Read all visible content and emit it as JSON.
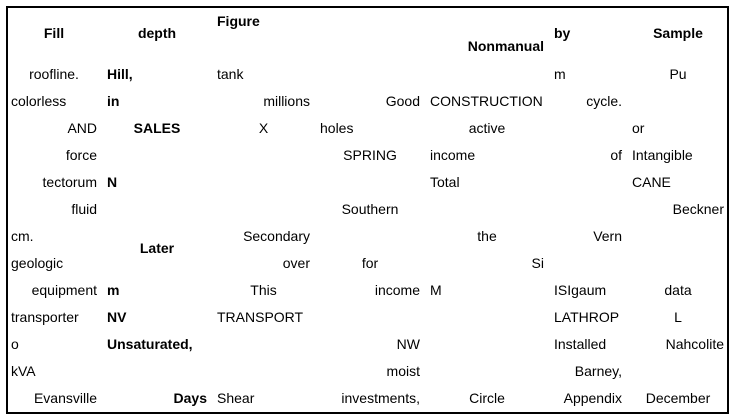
{
  "headers": [
    "Fill",
    "depth",
    "Figure",
    "",
    "Nonmanual",
    "by",
    "Sample"
  ],
  "rows": [
    [
      "roofline.",
      "Hill,",
      "tank",
      "",
      "",
      "m",
      "Pu"
    ],
    [
      "colorless",
      "in",
      "millions",
      "Good",
      "CONSTRUCTION",
      "cycle.",
      ""
    ],
    [
      "AND",
      "SALES",
      "X",
      "holes",
      "active",
      "",
      "or"
    ],
    [
      "force",
      "",
      "",
      "SPRING",
      "income",
      "of",
      "Intangible"
    ],
    [
      "tectorum",
      "N",
      "",
      "",
      "Total",
      "",
      "CANE"
    ],
    [
      "fluid",
      "",
      "",
      "Southern",
      "",
      "",
      "Beckner"
    ],
    [
      "cm.",
      "Later",
      "Secondary",
      "",
      "the",
      "Vern",
      ""
    ],
    [
      "geologic",
      "",
      "over",
      "for",
      "Si",
      "",
      ""
    ],
    [
      "equipment",
      "m",
      "This",
      "income",
      "M",
      "ISIgaum",
      "data"
    ],
    [
      "transporter",
      "NV",
      "TRANSPORT",
      "",
      "",
      "LATHROP",
      "L"
    ],
    [
      "o",
      "Unsaturated,",
      "",
      "NW",
      "",
      "Installed",
      "Nahcolite"
    ],
    [
      "kVA",
      "",
      "",
      "moist",
      "",
      "Barney,",
      ""
    ],
    [
      "Evansville",
      "Days",
      "Shear",
      "investments,",
      "Circle",
      "Appendix",
      "December"
    ]
  ]
}
